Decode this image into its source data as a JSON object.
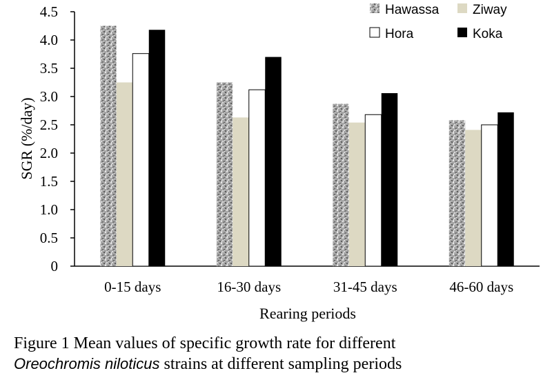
{
  "chart_data": {
    "type": "bar",
    "categories": [
      "0-15 days",
      "16-30 days",
      "31-45 days",
      "46-60 days"
    ],
    "series": [
      {
        "name": "Hawassa",
        "values": [
          4.25,
          3.25,
          2.87,
          2.58
        ],
        "color": "#9a9a9a",
        "pattern": "speckled-gray"
      },
      {
        "name": "Ziway",
        "values": [
          3.25,
          2.63,
          2.54,
          2.41
        ],
        "color": "#ddd9c3"
      },
      {
        "name": "Hora",
        "values": [
          3.76,
          3.12,
          2.68,
          2.5
        ],
        "color": "#ffffff"
      },
      {
        "name": "Koka",
        "values": [
          4.18,
          3.7,
          3.06,
          2.72
        ],
        "color": "#000000"
      }
    ],
    "ylabel": "SGR (%/day)",
    "xlabel": "Rearing periods",
    "ylim": [
      0,
      4.5
    ],
    "yticks": [
      "0",
      "0.5",
      "1.0",
      "1.5",
      "2.0",
      "2.5",
      "3.0",
      "3.5",
      "4.0",
      "4.5"
    ],
    "grid": false,
    "legend_position": "top-right"
  },
  "caption": {
    "line1": "Figure 1 Mean values of specific growth rate for different",
    "species": "Oreochromis niloticus",
    "line2_rest": " strains at different sampling periods"
  }
}
